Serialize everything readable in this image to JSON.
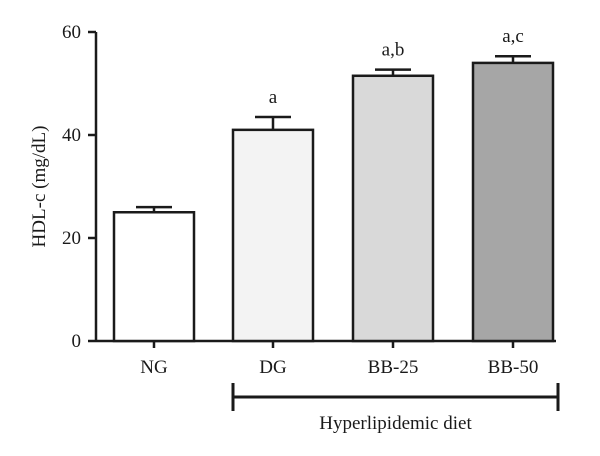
{
  "chart_data": {
    "type": "bar",
    "categories": [
      "NG",
      "DG",
      "BB-25",
      "BB-50"
    ],
    "values": [
      25.0,
      41.0,
      51.5,
      54.0
    ],
    "errors": [
      1.0,
      2.5,
      1.2,
      1.3
    ],
    "significance": [
      "",
      "a",
      "a,b",
      "a,c"
    ],
    "bar_colors": [
      "#ffffff",
      "#f3f3f3",
      "#d9d9d9",
      "#a6a6a6"
    ],
    "ylabel": "HDL-c (mg/dL)",
    "xlabel": "",
    "ylim": [
      0,
      60
    ],
    "yticks": [
      0,
      20,
      40,
      60
    ],
    "grid": false,
    "group_label": "Hyperlipidemic diet"
  }
}
